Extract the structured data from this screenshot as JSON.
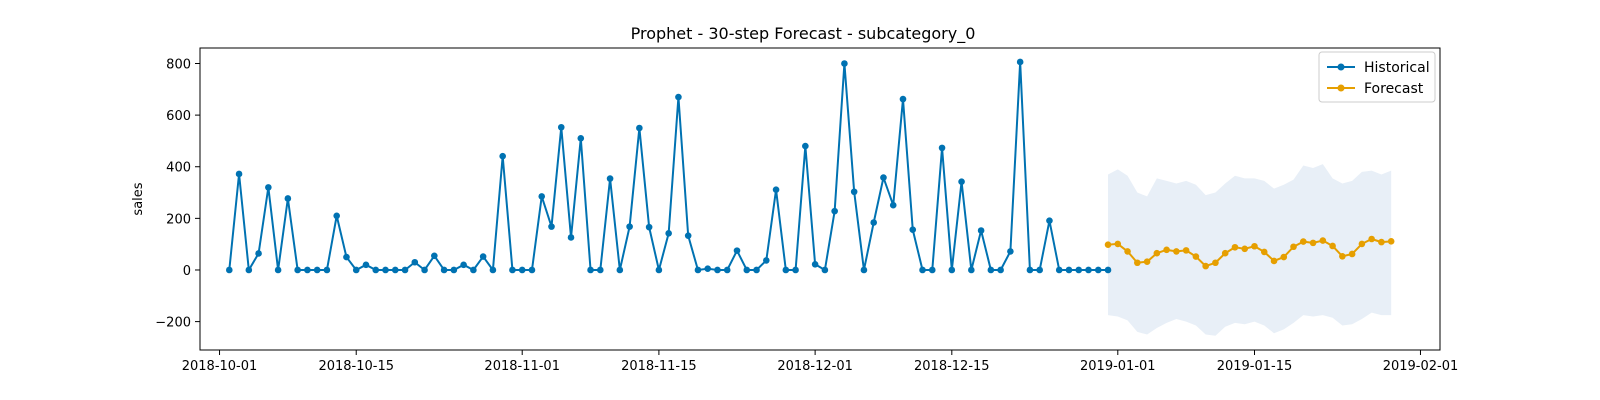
{
  "chart_data": {
    "type": "line",
    "title": "Prophet - 30-step Forecast - subcategory_0",
    "xlabel": "",
    "ylabel": "sales",
    "x_axis_type": "date",
    "xlim": [
      "2018-09-29",
      "2019-02-03"
    ],
    "ylim": [
      -310,
      860
    ],
    "x_ticks": [
      "2018-10-01",
      "2018-10-15",
      "2018-11-01",
      "2018-11-15",
      "2018-12-01",
      "2018-12-15",
      "2019-01-01",
      "2019-01-15",
      "2019-02-01"
    ],
    "y_ticks": [
      -200,
      0,
      200,
      400,
      600,
      800
    ],
    "grid": false,
    "legend": {
      "placement": "top-right",
      "entries": [
        "Historical",
        "Forecast"
      ]
    },
    "series": [
      {
        "name": "Historical",
        "color": "#0072B2",
        "marker": "circle",
        "x_start": "2018-10-02",
        "values": [
          0,
          372,
          0,
          64,
          320,
          0,
          277,
          0,
          0,
          0,
          0,
          210,
          50,
          0,
          20,
          0,
          0,
          0,
          0,
          30,
          0,
          55,
          0,
          0,
          20,
          0,
          52,
          0,
          441,
          0,
          0,
          0,
          285,
          168,
          553,
          126,
          510,
          0,
          0,
          354,
          0,
          168,
          550,
          166,
          0,
          142,
          670,
          133,
          0,
          5,
          0,
          0,
          75,
          0,
          0,
          37,
          311,
          0,
          0,
          480,
          22,
          0,
          228,
          800,
          303,
          0,
          184,
          358,
          251,
          662,
          156,
          0,
          0,
          473,
          0,
          342,
          0,
          153,
          0,
          0,
          72,
          806,
          0,
          0,
          191,
          0,
          0,
          0,
          0,
          0,
          0
        ]
      },
      {
        "name": "Forecast",
        "color": "#E69F00",
        "marker": "circle",
        "x_start": "2018-12-31",
        "values": [
          98,
          101,
          72,
          28,
          32,
          65,
          78,
          72,
          76,
          52,
          15,
          28,
          65,
          88,
          82,
          92,
          70,
          35,
          50,
          90,
          110,
          105,
          114,
          93,
          53,
          62,
          101,
          120,
          108,
          111
        ],
        "interval_lower": [
          -175,
          -180,
          -195,
          -240,
          -250,
          -225,
          -205,
          -190,
          -200,
          -215,
          -250,
          -255,
          -220,
          -205,
          -210,
          -200,
          -215,
          -245,
          -230,
          -205,
          -175,
          -180,
          -175,
          -185,
          -215,
          -210,
          -190,
          -165,
          -175,
          -175
        ],
        "interval_upper": [
          370,
          390,
          365,
          300,
          285,
          355,
          345,
          335,
          345,
          330,
          290,
          300,
          335,
          365,
          355,
          355,
          345,
          315,
          330,
          350,
          405,
          395,
          410,
          355,
          335,
          345,
          380,
          385,
          370,
          385
        ],
        "interval_color": "#E8EFF7"
      }
    ]
  }
}
